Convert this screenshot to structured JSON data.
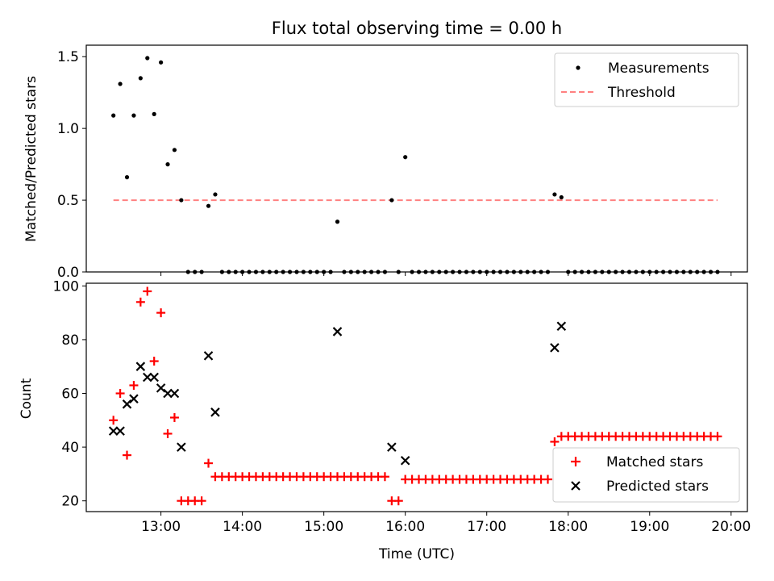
{
  "chart_data": [
    {
      "type": "scatter",
      "title": "Flux total observing time = 0.00 h",
      "xlabel": "",
      "ylabel": "Matched/Predicted stars",
      "ylim": [
        0,
        1.58
      ],
      "yticks": [
        "0.0",
        "0.5",
        "1.0",
        "1.5"
      ],
      "xlim": [
        "12:05",
        "20:12"
      ],
      "legend": {
        "placement": "top-right",
        "entries": [
          "Measurements",
          "Threshold"
        ]
      },
      "series": [
        {
          "name": "Measurements",
          "color": "#000000",
          "points": [
            {
              "x": "12:25",
              "y": 1.09
            },
            {
              "x": "12:30",
              "y": 1.31
            },
            {
              "x": "12:35",
              "y": 0.66
            },
            {
              "x": "12:40",
              "y": 1.09
            },
            {
              "x": "12:45",
              "y": 1.35
            },
            {
              "x": "12:50",
              "y": 1.49
            },
            {
              "x": "12:55",
              "y": 1.1
            },
            {
              "x": "13:00",
              "y": 1.46
            },
            {
              "x": "13:05",
              "y": 0.75
            },
            {
              "x": "13:10",
              "y": 0.85
            },
            {
              "x": "13:15",
              "y": 0.5
            },
            {
              "x": "13:20",
              "y": 0.0
            },
            {
              "x": "13:25",
              "y": 0.0
            },
            {
              "x": "13:30",
              "y": 0.0
            },
            {
              "x": "13:35",
              "y": 0.46
            },
            {
              "x": "13:40",
              "y": 0.54
            },
            {
              "x": "13:45",
              "y": 0.0
            },
            {
              "x": "13:50",
              "y": 0.0
            },
            {
              "x": "13:55",
              "y": 0.0
            },
            {
              "x": "14:00",
              "y": 0.0
            },
            {
              "x": "14:05",
              "y": 0.0
            },
            {
              "x": "14:10",
              "y": 0.0
            },
            {
              "x": "14:15",
              "y": 0.0
            },
            {
              "x": "14:20",
              "y": 0.0
            },
            {
              "x": "14:25",
              "y": 0.0
            },
            {
              "x": "14:30",
              "y": 0.0
            },
            {
              "x": "14:35",
              "y": 0.0
            },
            {
              "x": "14:40",
              "y": 0.0
            },
            {
              "x": "14:45",
              "y": 0.0
            },
            {
              "x": "14:50",
              "y": 0.0
            },
            {
              "x": "14:55",
              "y": 0.0
            },
            {
              "x": "15:00",
              "y": 0.0
            },
            {
              "x": "15:05",
              "y": 0.0
            },
            {
              "x": "15:10",
              "y": 0.35
            },
            {
              "x": "15:15",
              "y": 0.0
            },
            {
              "x": "15:20",
              "y": 0.0
            },
            {
              "x": "15:25",
              "y": 0.0
            },
            {
              "x": "15:30",
              "y": 0.0
            },
            {
              "x": "15:35",
              "y": 0.0
            },
            {
              "x": "15:40",
              "y": 0.0
            },
            {
              "x": "15:45",
              "y": 0.0
            },
            {
              "x": "15:50",
              "y": 0.5
            },
            {
              "x": "15:55",
              "y": 0.0
            },
            {
              "x": "16:00",
              "y": 0.8
            },
            {
              "x": "16:05",
              "y": 0.0
            },
            {
              "x": "16:10",
              "y": 0.0
            },
            {
              "x": "16:15",
              "y": 0.0
            },
            {
              "x": "16:20",
              "y": 0.0
            },
            {
              "x": "16:25",
              "y": 0.0
            },
            {
              "x": "16:30",
              "y": 0.0
            },
            {
              "x": "16:35",
              "y": 0.0
            },
            {
              "x": "16:40",
              "y": 0.0
            },
            {
              "x": "16:45",
              "y": 0.0
            },
            {
              "x": "16:50",
              "y": 0.0
            },
            {
              "x": "16:55",
              "y": 0.0
            },
            {
              "x": "17:00",
              "y": 0.0
            },
            {
              "x": "17:05",
              "y": 0.0
            },
            {
              "x": "17:10",
              "y": 0.0
            },
            {
              "x": "17:15",
              "y": 0.0
            },
            {
              "x": "17:20",
              "y": 0.0
            },
            {
              "x": "17:25",
              "y": 0.0
            },
            {
              "x": "17:30",
              "y": 0.0
            },
            {
              "x": "17:35",
              "y": 0.0
            },
            {
              "x": "17:40",
              "y": 0.0
            },
            {
              "x": "17:45",
              "y": 0.0
            },
            {
              "x": "17:50",
              "y": 0.54
            },
            {
              "x": "17:55",
              "y": 0.52
            },
            {
              "x": "18:00",
              "y": 0.0
            },
            {
              "x": "18:05",
              "y": 0.0
            },
            {
              "x": "18:10",
              "y": 0.0
            },
            {
              "x": "18:15",
              "y": 0.0
            },
            {
              "x": "18:20",
              "y": 0.0
            },
            {
              "x": "18:25",
              "y": 0.0
            },
            {
              "x": "18:30",
              "y": 0.0
            },
            {
              "x": "18:35",
              "y": 0.0
            },
            {
              "x": "18:40",
              "y": 0.0
            },
            {
              "x": "18:45",
              "y": 0.0
            },
            {
              "x": "18:50",
              "y": 0.0
            },
            {
              "x": "18:55",
              "y": 0.0
            },
            {
              "x": "19:00",
              "y": 0.0
            },
            {
              "x": "19:05",
              "y": 0.0
            },
            {
              "x": "19:10",
              "y": 0.0
            },
            {
              "x": "19:15",
              "y": 0.0
            },
            {
              "x": "19:20",
              "y": 0.0
            },
            {
              "x": "19:25",
              "y": 0.0
            },
            {
              "x": "19:30",
              "y": 0.0
            },
            {
              "x": "19:35",
              "y": 0.0
            },
            {
              "x": "19:40",
              "y": 0.0
            },
            {
              "x": "19:45",
              "y": 0.0
            },
            {
              "x": "19:50",
              "y": 0.0
            }
          ]
        },
        {
          "name": "Threshold",
          "color": "#ff8080",
          "line": "dashed",
          "points": [
            {
              "x": "12:25",
              "y": 0.5
            },
            {
              "x": "19:50",
              "y": 0.5
            }
          ]
        }
      ]
    },
    {
      "type": "scatter",
      "title": "",
      "xlabel": "Time (UTC)",
      "ylabel": "Count",
      "ylim": [
        16,
        101
      ],
      "yticks": [
        "20",
        "40",
        "60",
        "80",
        "100"
      ],
      "xlim": [
        "12:05",
        "20:12"
      ],
      "xticks": [
        "13:00",
        "14:00",
        "15:00",
        "16:00",
        "17:00",
        "18:00",
        "19:00",
        "20:00"
      ],
      "legend": {
        "placement": "bottom-right",
        "entries": [
          "Matched stars",
          "Predicted stars"
        ]
      },
      "series": [
        {
          "name": "Matched stars",
          "color": "#ff0000",
          "marker": "plus",
          "points": [
            {
              "x": "12:25",
              "y": 50
            },
            {
              "x": "12:30",
              "y": 60
            },
            {
              "x": "12:35",
              "y": 37
            },
            {
              "x": "12:40",
              "y": 63
            },
            {
              "x": "12:45",
              "y": 94
            },
            {
              "x": "12:50",
              "y": 98
            },
            {
              "x": "12:55",
              "y": 72
            },
            {
              "x": "13:00",
              "y": 90
            },
            {
              "x": "13:05",
              "y": 45
            },
            {
              "x": "13:10",
              "y": 51
            },
            {
              "x": "13:15",
              "y": 20
            },
            {
              "x": "13:20",
              "y": 20
            },
            {
              "x": "13:25",
              "y": 20
            },
            {
              "x": "13:30",
              "y": 20
            },
            {
              "x": "13:35",
              "y": 34
            },
            {
              "x": "13:40",
              "y": 29
            },
            {
              "x": "13:45",
              "y": 29
            },
            {
              "x": "13:50",
              "y": 29
            },
            {
              "x": "13:55",
              "y": 29
            },
            {
              "x": "14:00",
              "y": 29
            },
            {
              "x": "14:05",
              "y": 29
            },
            {
              "x": "14:10",
              "y": 29
            },
            {
              "x": "14:15",
              "y": 29
            },
            {
              "x": "14:20",
              "y": 29
            },
            {
              "x": "14:25",
              "y": 29
            },
            {
              "x": "14:30",
              "y": 29
            },
            {
              "x": "14:35",
              "y": 29
            },
            {
              "x": "14:40",
              "y": 29
            },
            {
              "x": "14:45",
              "y": 29
            },
            {
              "x": "14:50",
              "y": 29
            },
            {
              "x": "14:55",
              "y": 29
            },
            {
              "x": "15:00",
              "y": 29
            },
            {
              "x": "15:05",
              "y": 29
            },
            {
              "x": "15:10",
              "y": 29
            },
            {
              "x": "15:15",
              "y": 29
            },
            {
              "x": "15:20",
              "y": 29
            },
            {
              "x": "15:25",
              "y": 29
            },
            {
              "x": "15:30",
              "y": 29
            },
            {
              "x": "15:35",
              "y": 29
            },
            {
              "x": "15:40",
              "y": 29
            },
            {
              "x": "15:45",
              "y": 29
            },
            {
              "x": "15:50",
              "y": 20
            },
            {
              "x": "15:55",
              "y": 20
            },
            {
              "x": "16:00",
              "y": 28
            },
            {
              "x": "16:05",
              "y": 28
            },
            {
              "x": "16:10",
              "y": 28
            },
            {
              "x": "16:15",
              "y": 28
            },
            {
              "x": "16:20",
              "y": 28
            },
            {
              "x": "16:25",
              "y": 28
            },
            {
              "x": "16:30",
              "y": 28
            },
            {
              "x": "16:35",
              "y": 28
            },
            {
              "x": "16:40",
              "y": 28
            },
            {
              "x": "16:45",
              "y": 28
            },
            {
              "x": "16:50",
              "y": 28
            },
            {
              "x": "16:55",
              "y": 28
            },
            {
              "x": "17:00",
              "y": 28
            },
            {
              "x": "17:05",
              "y": 28
            },
            {
              "x": "17:10",
              "y": 28
            },
            {
              "x": "17:15",
              "y": 28
            },
            {
              "x": "17:20",
              "y": 28
            },
            {
              "x": "17:25",
              "y": 28
            },
            {
              "x": "17:30",
              "y": 28
            },
            {
              "x": "17:35",
              "y": 28
            },
            {
              "x": "17:40",
              "y": 28
            },
            {
              "x": "17:45",
              "y": 28
            },
            {
              "x": "17:50",
              "y": 42
            },
            {
              "x": "17:55",
              "y": 44
            },
            {
              "x": "18:00",
              "y": 44
            },
            {
              "x": "18:05",
              "y": 44
            },
            {
              "x": "18:10",
              "y": 44
            },
            {
              "x": "18:15",
              "y": 44
            },
            {
              "x": "18:20",
              "y": 44
            },
            {
              "x": "18:25",
              "y": 44
            },
            {
              "x": "18:30",
              "y": 44
            },
            {
              "x": "18:35",
              "y": 44
            },
            {
              "x": "18:40",
              "y": 44
            },
            {
              "x": "18:45",
              "y": 44
            },
            {
              "x": "18:50",
              "y": 44
            },
            {
              "x": "18:55",
              "y": 44
            },
            {
              "x": "19:00",
              "y": 44
            },
            {
              "x": "19:05",
              "y": 44
            },
            {
              "x": "19:10",
              "y": 44
            },
            {
              "x": "19:15",
              "y": 44
            },
            {
              "x": "19:20",
              "y": 44
            },
            {
              "x": "19:25",
              "y": 44
            },
            {
              "x": "19:30",
              "y": 44
            },
            {
              "x": "19:35",
              "y": 44
            },
            {
              "x": "19:40",
              "y": 44
            },
            {
              "x": "19:45",
              "y": 44
            },
            {
              "x": "19:50",
              "y": 44
            }
          ]
        },
        {
          "name": "Predicted stars",
          "color": "#000000",
          "marker": "x",
          "points": [
            {
              "x": "12:25",
              "y": 46
            },
            {
              "x": "12:30",
              "y": 46
            },
            {
              "x": "12:35",
              "y": 56
            },
            {
              "x": "12:40",
              "y": 58
            },
            {
              "x": "12:45",
              "y": 70
            },
            {
              "x": "12:50",
              "y": 66
            },
            {
              "x": "12:55",
              "y": 66
            },
            {
              "x": "13:00",
              "y": 62
            },
            {
              "x": "13:05",
              "y": 60
            },
            {
              "x": "13:10",
              "y": 60
            },
            {
              "x": "13:15",
              "y": 40
            },
            {
              "x": "13:35",
              "y": 74
            },
            {
              "x": "13:40",
              "y": 53
            },
            {
              "x": "15:10",
              "y": 83
            },
            {
              "x": "15:50",
              "y": 40
            },
            {
              "x": "16:00",
              "y": 35
            },
            {
              "x": "17:50",
              "y": 77
            },
            {
              "x": "17:55",
              "y": 85
            }
          ]
        }
      ]
    }
  ]
}
